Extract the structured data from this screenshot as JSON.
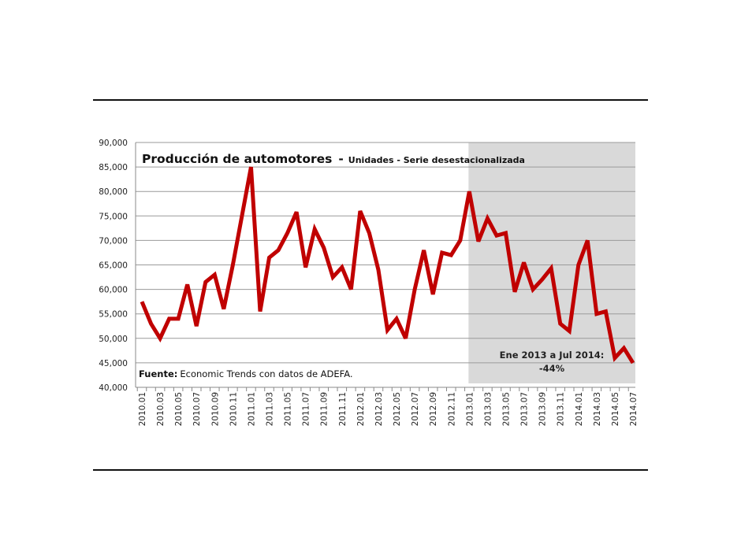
{
  "chart_data": {
    "type": "line",
    "title": "Producción de automotores",
    "title_separator": "-",
    "subtitle": "Unidades - Serie desestacionalizada",
    "source_label": "Fuente:",
    "source_text": "Economic Trends con datos de ADEFA.",
    "annotation": [
      "Ene 2013 a Jul 2014:",
      "-44%"
    ],
    "highlight_range": [
      "2013.01",
      "2014.07"
    ],
    "highlight_color": "#d9d9d9",
    "line_color": "#c00000",
    "ylim": [
      40000,
      90000
    ],
    "yticks": [
      "40,000",
      "45,000",
      "50,000",
      "55,000",
      "60,000",
      "65,000",
      "70,000",
      "75,000",
      "80,000",
      "85,000",
      "90,000"
    ],
    "grid": true,
    "categories": [
      "2010.01",
      "2010.02",
      "2010.03",
      "2010.04",
      "2010.05",
      "2010.06",
      "2010.07",
      "2010.08",
      "2010.09",
      "2010.10",
      "2010.11",
      "2010.12",
      "2011.01",
      "2011.02",
      "2011.03",
      "2011.04",
      "2011.05",
      "2011.06",
      "2011.07",
      "2011.08",
      "2011.09",
      "2011.10",
      "2011.11",
      "2011.12",
      "2012.01",
      "2012.02",
      "2012.03",
      "2012.04",
      "2012.05",
      "2012.06",
      "2012.07",
      "2012.08",
      "2012.09",
      "2012.10",
      "2012.11",
      "2012.12",
      "2013.01",
      "2013.02",
      "2013.03",
      "2013.04",
      "2013.05",
      "2013.06",
      "2013.07",
      "2013.08",
      "2013.09",
      "2013.10",
      "2013.11",
      "2013.12",
      "2014.01",
      "2014.02",
      "2014.03",
      "2014.04",
      "2014.05",
      "2014.06",
      "2014.07"
    ],
    "values": [
      57500,
      53000,
      50000,
      54000,
      54000,
      61000,
      52500,
      61500,
      63000,
      56000,
      65000,
      75000,
      85000,
      55500,
      66500,
      68000,
      71500,
      75800,
      64500,
      72300,
      68500,
      62500,
      64500,
      60000,
      76000,
      71500,
      64000,
      51700,
      54000,
      50000,
      60000,
      68000,
      59000,
      67500,
      67000,
      70000,
      80000,
      69800,
      74500,
      71000,
      71500,
      59500,
      65500,
      60000,
      62000,
      64300,
      53000,
      51500,
      65000,
      70000,
      55000,
      55500,
      46000,
      48000,
      45000
    ]
  }
}
